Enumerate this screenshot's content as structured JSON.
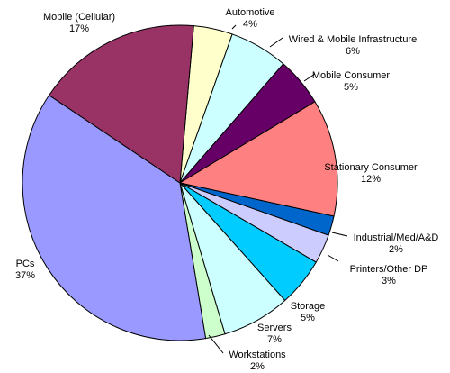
{
  "chart_data": {
    "type": "pie",
    "title": "",
    "slices": [
      {
        "label": "Automotive",
        "percent_label": "4%",
        "value": 4,
        "color": "#FFFFCC"
      },
      {
        "label": "Wired & Mobile Infrastructure",
        "percent_label": "6%",
        "value": 6,
        "color": "#CCFFFF"
      },
      {
        "label": "Mobile Consumer",
        "percent_label": "5%",
        "value": 5,
        "color": "#660066"
      },
      {
        "label": "Stationary Consumer",
        "percent_label": "12%",
        "value": 12,
        "color": "#FF8080"
      },
      {
        "label": "Industrial/Med/A&D",
        "percent_label": "2%",
        "value": 2,
        "color": "#0066CC"
      },
      {
        "label": "Printers/Other DP",
        "percent_label": "3%",
        "value": 3,
        "color": "#CCCCFF"
      },
      {
        "label": "Storage",
        "percent_label": "5%",
        "value": 5,
        "color": "#00CCFF"
      },
      {
        "label": "Servers",
        "percent_label": "7%",
        "value": 7,
        "color": "#CCFFFF"
      },
      {
        "label": "Workstations",
        "percent_label": "2%",
        "value": 2,
        "color": "#CCFFCC"
      },
      {
        "label": "PCs",
        "percent_label": "37%",
        "value": 37,
        "color": "#9999FF"
      },
      {
        "label": "Mobile (Cellular)",
        "percent_label": "17%",
        "value": 17,
        "color": "#993366"
      }
    ]
  }
}
